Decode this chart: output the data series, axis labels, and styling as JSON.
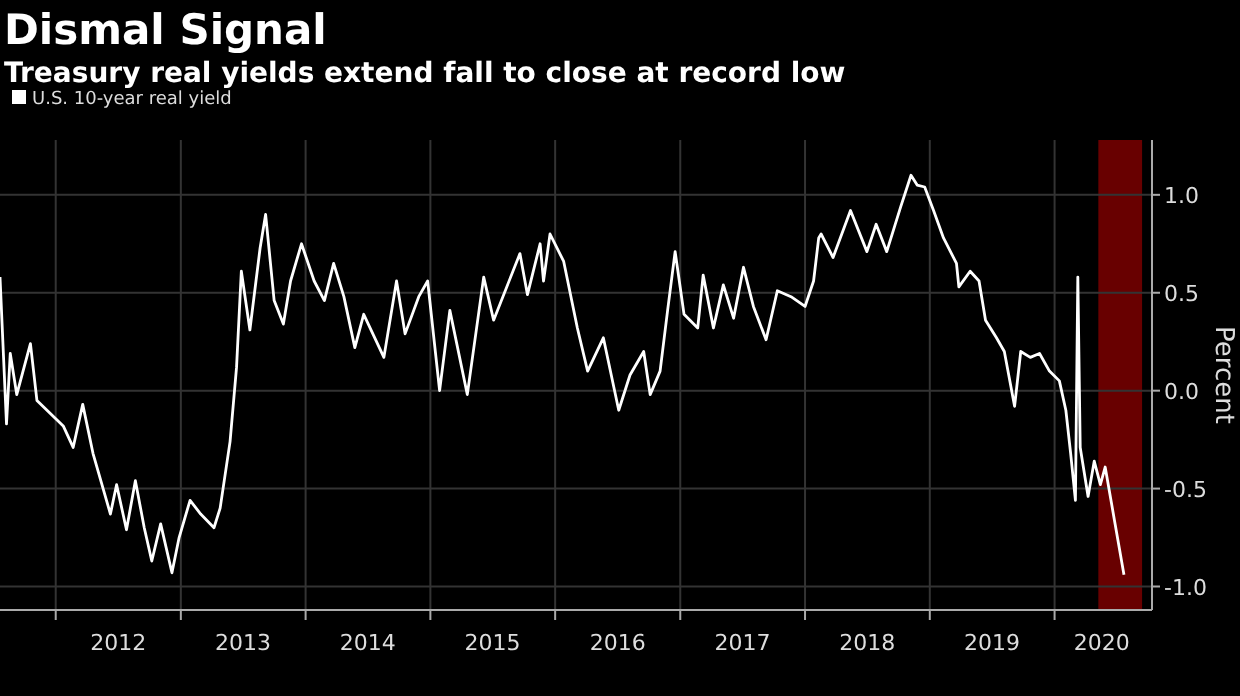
{
  "chart_data": {
    "type": "line",
    "title": "Dismal Signal",
    "subtitle": "Treasury real yields extend fall to close at record low",
    "ylabel": "Percent",
    "x": [
      "2011-07-22",
      "2011-08-10",
      "2011-08-21",
      "2011-09-09",
      "2011-10-19",
      "2011-11-07",
      "2012-01-23",
      "2012-02-21",
      "2012-03-20",
      "2012-04-19",
      "2012-06-09",
      "2012-06-27",
      "2012-07-26",
      "2012-08-21",
      "2012-09-16",
      "2012-10-08",
      "2012-11-03",
      "2012-12-06",
      "2012-12-27",
      "2013-01-28",
      "2013-02-28",
      "2013-04-08",
      "2013-04-26",
      "2013-05-25",
      "2013-06-13",
      "2013-06-27",
      "2013-07-22",
      "2013-08-21",
      "2013-09-06",
      "2013-10-01",
      "2013-10-28",
      "2013-11-18",
      "2013-12-20",
      "2014-01-26",
      "2014-02-25",
      "2014-03-24",
      "2014-04-23",
      "2014-05-25",
      "2014-06-20",
      "2014-08-18",
      "2014-09-24",
      "2014-10-19",
      "2014-11-28",
      "2014-12-24",
      "2015-01-28",
      "2015-02-27",
      "2015-04-19",
      "2015-06-06",
      "2015-07-05",
      "2015-09-20",
      "2015-10-12",
      "2015-11-18",
      "2015-11-28",
      "2015-12-17",
      "2016-01-26",
      "2016-03-06",
      "2016-04-05",
      "2016-05-21",
      "2016-07-05",
      "2016-08-07",
      "2016-09-16",
      "2016-10-05",
      "2016-11-03",
      "2016-11-25",
      "2016-12-17",
      "2017-01-12",
      "2017-02-21",
      "2017-03-09",
      "2017-04-08",
      "2017-05-07",
      "2017-06-06",
      "2017-07-05",
      "2017-08-03",
      "2017-09-09",
      "2017-10-12",
      "2017-11-21",
      "2018-01-01",
      "2018-01-26",
      "2018-02-10",
      "2018-02-17",
      "2018-03-24",
      "2018-05-14",
      "2018-07-01",
      "2018-07-28",
      "2018-08-28",
      "2018-10-08",
      "2018-11-07",
      "2018-11-25",
      "2018-12-17",
      "2019-01-12",
      "2019-02-10",
      "2019-03-20",
      "2019-03-27",
      "2019-04-29",
      "2019-05-25",
      "2019-06-13",
      "2019-07-15",
      "2019-08-07",
      "2019-09-06",
      "2019-09-24",
      "2019-10-22",
      "2019-11-18",
      "2019-12-17",
      "2020-01-15",
      "2020-02-03",
      "2020-02-17",
      "2020-03-02",
      "2020-03-09",
      "2020-03-16",
      "2020-04-08",
      "2020-04-26",
      "2020-05-14",
      "2020-05-28",
      "2020-06-24",
      "2020-07-22"
    ],
    "series": [
      {
        "name": "U.S. 10-year real yield",
        "color": "#ffffff",
        "values": [
          0.58,
          -0.17,
          0.19,
          -0.02,
          0.24,
          -0.05,
          -0.18,
          -0.29,
          -0.07,
          -0.32,
          -0.63,
          -0.48,
          -0.71,
          -0.46,
          -0.7,
          -0.87,
          -0.68,
          -0.93,
          -0.75,
          -0.56,
          -0.63,
          -0.7,
          -0.6,
          -0.26,
          0.12,
          0.61,
          0.31,
          0.73,
          0.9,
          0.46,
          0.34,
          0.56,
          0.75,
          0.56,
          0.46,
          0.65,
          0.48,
          0.22,
          0.39,
          0.17,
          0.56,
          0.29,
          0.48,
          0.56,
          0.0,
          0.41,
          -0.02,
          0.58,
          0.36,
          0.7,
          0.49,
          0.75,
          0.56,
          0.8,
          0.66,
          0.32,
          0.1,
          0.27,
          -0.1,
          0.08,
          0.2,
          -0.02,
          0.1,
          0.41,
          0.71,
          0.39,
          0.32,
          0.59,
          0.32,
          0.54,
          0.37,
          0.63,
          0.43,
          0.26,
          0.51,
          0.48,
          0.43,
          0.56,
          0.78,
          0.8,
          0.68,
          0.92,
          0.71,
          0.85,
          0.71,
          0.94,
          1.1,
          1.05,
          1.04,
          0.92,
          0.78,
          0.65,
          0.53,
          0.61,
          0.56,
          0.36,
          0.27,
          0.2,
          -0.08,
          0.2,
          0.17,
          0.19,
          0.1,
          0.05,
          -0.1,
          -0.32,
          -0.56,
          0.58,
          -0.29,
          -0.54,
          -0.36,
          -0.48,
          -0.39,
          -0.66,
          -0.94
        ]
      }
    ],
    "xlim": [
      "2011-07-22",
      "2020-10-12"
    ],
    "xticks": [
      {
        "value": "2012-01-01",
        "label": null
      },
      {
        "value": "2012-07-02",
        "label": "2012"
      },
      {
        "value": "2013-01-01",
        "label": null
      },
      {
        "value": "2013-07-02",
        "label": "2013"
      },
      {
        "value": "2014-01-01",
        "label": null
      },
      {
        "value": "2014-07-02",
        "label": "2014"
      },
      {
        "value": "2015-01-01",
        "label": null
      },
      {
        "value": "2015-07-02",
        "label": "2015"
      },
      {
        "value": "2016-01-01",
        "label": null
      },
      {
        "value": "2016-07-02",
        "label": "2016"
      },
      {
        "value": "2017-01-01",
        "label": null
      },
      {
        "value": "2017-07-02",
        "label": "2017"
      },
      {
        "value": "2018-01-01",
        "label": null
      },
      {
        "value": "2018-07-02",
        "label": "2018"
      },
      {
        "value": "2019-01-01",
        "label": null
      },
      {
        "value": "2019-07-02",
        "label": "2019"
      },
      {
        "value": "2020-01-01",
        "label": null
      },
      {
        "value": "2020-05-18",
        "label": "2020"
      }
    ],
    "ylim": [
      -1.12,
      1.28
    ],
    "yticks": [
      {
        "value": -1,
        "label": "-1.0"
      },
      {
        "value": -0.5,
        "label": "-0.5"
      },
      {
        "value": 0,
        "label": "0.0"
      },
      {
        "value": 0.5,
        "label": "0.5"
      },
      {
        "value": 1,
        "label": "1.0"
      }
    ],
    "bands": [
      {
        "axis": "x",
        "from": "2020-05-08",
        "to": "2020-09-13",
        "color": "#8b0000"
      }
    ],
    "grid": true,
    "legend": "top left",
    "marker": "none",
    "line_style": "solid"
  }
}
